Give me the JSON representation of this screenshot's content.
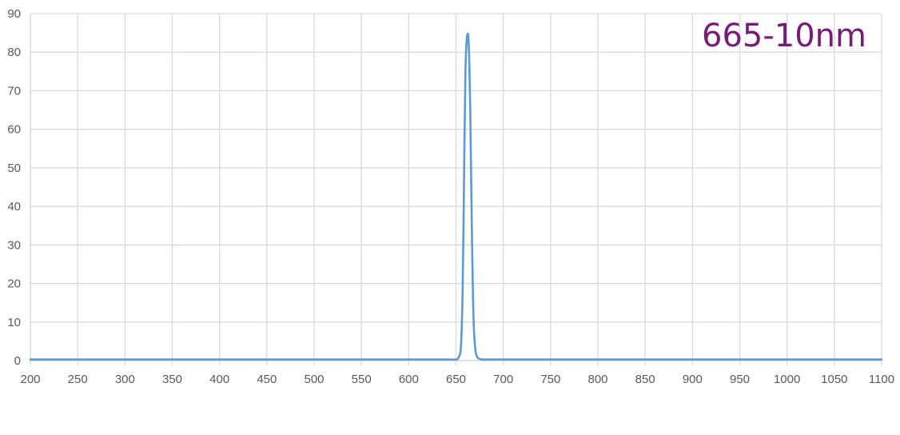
{
  "chart_data": {
    "type": "line",
    "title": "665-10nm",
    "xlabel": "",
    "ylabel": "",
    "xlim": [
      200,
      1100
    ],
    "ylim": [
      0,
      90
    ],
    "x_ticks": [
      200,
      250,
      300,
      350,
      400,
      450,
      500,
      550,
      600,
      650,
      700,
      750,
      800,
      850,
      900,
      950,
      1000,
      1050,
      1100
    ],
    "y_ticks": [
      0,
      10,
      20,
      30,
      40,
      50,
      60,
      70,
      80,
      90
    ],
    "grid": true,
    "legend": "none",
    "series": [
      {
        "color": "#5b9bd5",
        "x": [
          200,
          500,
          640,
          650,
          652,
          654,
          655,
          656,
          657,
          658,
          659,
          660,
          661,
          662,
          663,
          664,
          665,
          666,
          667,
          668,
          669,
          670,
          671,
          672,
          673,
          674,
          676,
          678,
          690,
          800,
          1100
        ],
        "y": [
          0.3,
          0.3,
          0.3,
          0.3,
          0.5,
          1.5,
          3,
          8,
          18,
          36,
          58,
          75,
          82,
          84.5,
          84,
          78,
          66,
          48,
          30,
          16,
          8,
          4,
          2,
          1.2,
          0.8,
          0.5,
          0.4,
          0.3,
          0.3,
          0.3,
          0.3
        ]
      }
    ]
  },
  "colors": {
    "grid": "#d9d9d9",
    "axis": "#d9d9d9",
    "title": "#7a1a78",
    "tick_text": "#595959"
  }
}
